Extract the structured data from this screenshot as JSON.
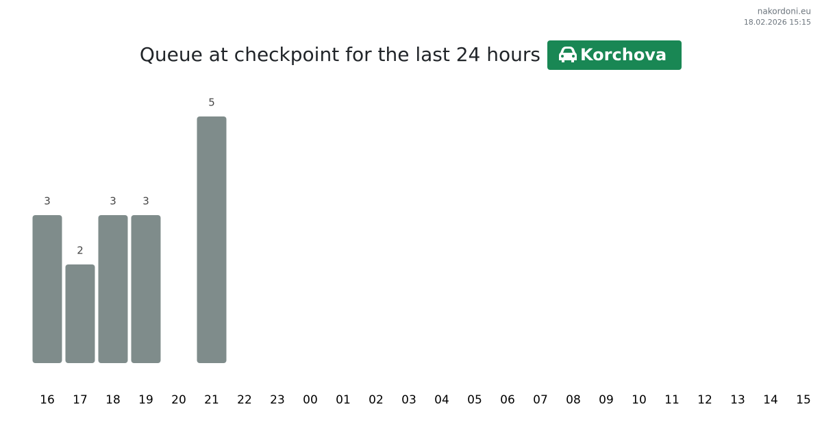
{
  "site": "nakordoni.eu",
  "timestamp": "18.02.2026 15:15",
  "chart_data": {
    "type": "bar",
    "title": "Queue at checkpoint for the last 24 hours",
    "checkpoint": "Korchova",
    "categories": [
      "16",
      "17",
      "18",
      "19",
      "20",
      "21",
      "22",
      "23",
      "00",
      "01",
      "02",
      "03",
      "04",
      "05",
      "06",
      "07",
      "08",
      "09",
      "10",
      "11",
      "12",
      "13",
      "14",
      "15"
    ],
    "values": [
      3,
      2,
      3,
      3,
      null,
      5,
      null,
      null,
      null,
      null,
      null,
      null,
      null,
      null,
      null,
      null,
      null,
      null,
      null,
      null,
      null,
      null,
      null,
      null
    ],
    "color": "#7f8c8b"
  }
}
